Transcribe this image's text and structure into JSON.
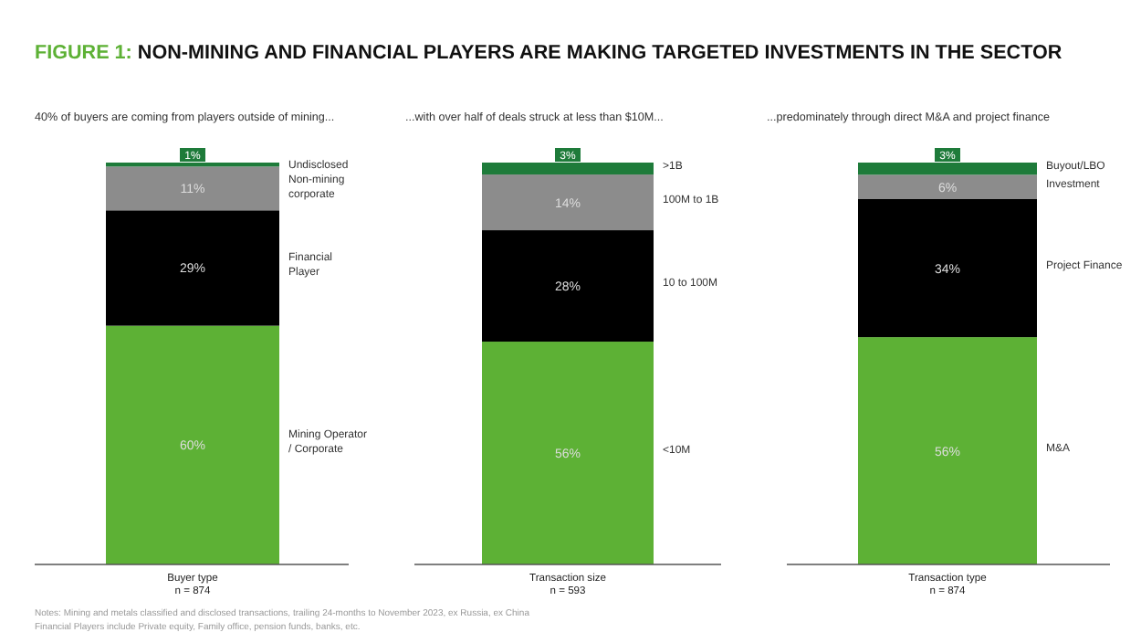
{
  "chart_data": [
    {
      "type": "bar",
      "stacked": true,
      "title": "FIGURE 1: NON-MINING AND FINANCIAL PLAYERS ARE MAKING TARGETED INVESTMENTS IN THE SECTOR",
      "subtitle": "40% of buyers are coming from players outside of mining...",
      "xlabel": "Buyer type",
      "categories": [
        null
      ],
      "series": [
        {
          "name": "Mining Operator / Corporate",
          "color": "#5db135",
          "values": [
            60
          ],
          "value_labels": [
            "60%"
          ]
        },
        {
          "name": "Financial Player",
          "color": "#000000",
          "values": [
            29
          ],
          "value_labels": [
            "29%"
          ]
        },
        {
          "name": "Non-mining corporate",
          "color": "#8c8c8c",
          "values": [
            11
          ],
          "value_labels": [
            "11%"
          ]
        },
        {
          "name": "Undisclosed",
          "color": "#1e7b3a",
          "values": [
            1
          ],
          "value_labels": [
            "1%"
          ]
        }
      ],
      "annotations": [
        "n = 874",
        "Notes: Mining and metals classified and disclosed transactions, trailing 24-months to November 2023, ex Russia, ex China",
        "Financial Players include Private equity, Family office, pension funds, banks, etc."
      ]
    },
    {
      "type": "bar",
      "stacked": true,
      "subtitle": "...with over half of deals struck at less than $10M...",
      "xlabel": "Transaction size",
      "categories": [
        null
      ],
      "series": [
        {
          "name": "<10M",
          "color": "#5db135",
          "values": [
            56
          ],
          "value_labels": [
            "56%"
          ]
        },
        {
          "name": "10 to 100M",
          "color": "#000000",
          "values": [
            28
          ],
          "value_labels": [
            "28%"
          ]
        },
        {
          "name": "100M to 1B",
          "color": "#8c8c8c",
          "values": [
            14
          ],
          "value_labels": [
            "14%"
          ]
        },
        {
          "name": ">1B",
          "color": "#1e7b3a",
          "values": [
            3
          ],
          "value_labels": [
            "3%"
          ]
        }
      ],
      "annotations": [
        "n = 593"
      ]
    },
    {
      "type": "bar",
      "stacked": true,
      "subtitle": "...predominately through direct M&A and project finance",
      "xlabel": "Transaction type",
      "categories": [
        null
      ],
      "series": [
        {
          "name": "M&A",
          "color": "#5db135",
          "values": [
            56
          ],
          "value_labels": [
            "56%"
          ]
        },
        {
          "name": "Project Finance",
          "color": "#000000",
          "values": [
            34
          ],
          "value_labels": [
            "34%"
          ]
        },
        {
          "name": "Investment",
          "color": "#8c8c8c",
          "values": [
            6
          ],
          "value_labels": [
            "6%"
          ]
        },
        {
          "name": "Buyout/LBO",
          "color": "#1e7b3a",
          "values": [
            3
          ],
          "value_labels": [
            "3%"
          ]
        }
      ],
      "annotations": [
        "n = 874"
      ]
    }
  ]
}
